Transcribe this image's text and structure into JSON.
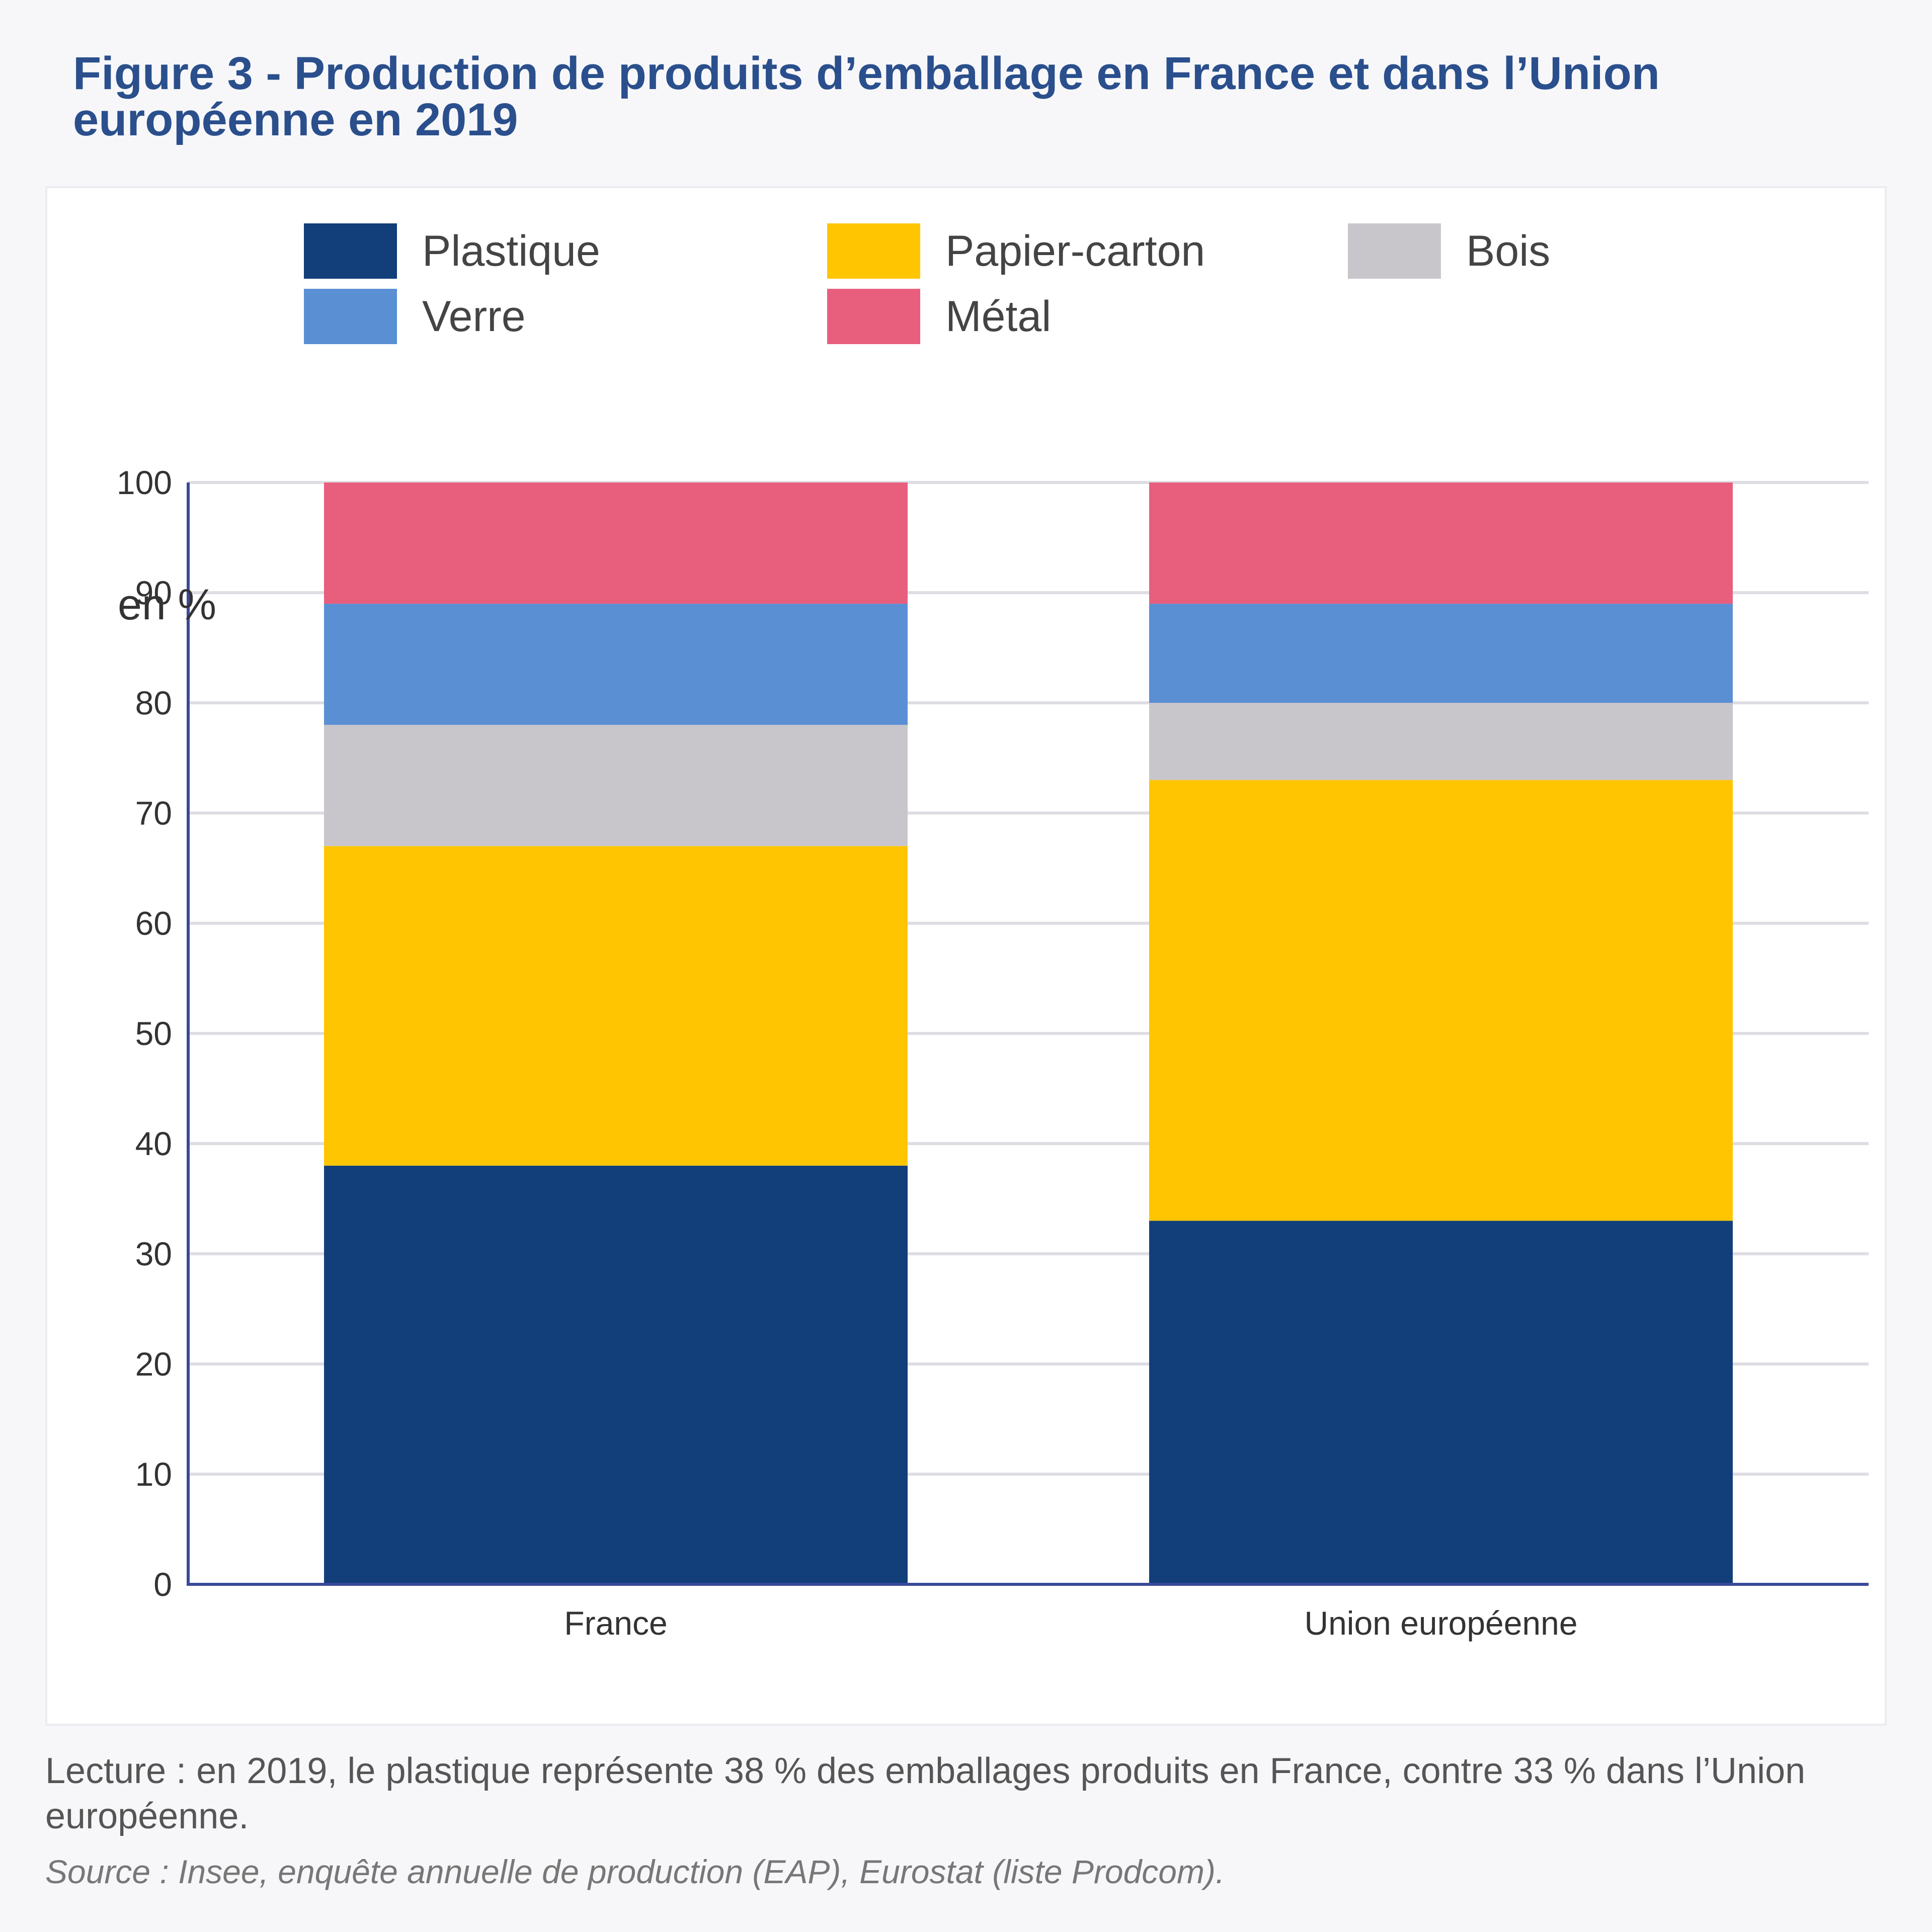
{
  "figure": {
    "title": "Figure 3 - Production de produits d’emballage en France et dans l’Union européenne en 2019",
    "note": "Lecture : en 2019, le plastique représente 38 % des emballages produits en France, contre 33 % dans l’Union européenne.",
    "source": "Source : Insee, enquête annuelle de production (EAP), Eurostat (liste Prodcom)."
  },
  "chart_data": {
    "type": "bar",
    "stacked": true,
    "title": "Figure 3 - Production de produits d’emballage en France et dans l’Union européenne en 2019",
    "ylabel": "en %",
    "xlabel": "",
    "categories": [
      "France",
      "Union européenne"
    ],
    "ylim": [
      0,
      100
    ],
    "yticks": [
      0,
      10,
      20,
      30,
      40,
      50,
      60,
      70,
      80,
      90,
      100
    ],
    "grid": true,
    "legend_position": "top",
    "series": [
      {
        "name": "Plastique",
        "color": "#123f7a",
        "values": [
          38,
          33
        ]
      },
      {
        "name": "Papier-carton",
        "color": "#fec500",
        "values": [
          29,
          40
        ]
      },
      {
        "name": "Bois",
        "color": "#c8c6cb",
        "values": [
          11,
          7
        ]
      },
      {
        "name": "Verre",
        "color": "#5b8fd4",
        "values": [
          11,
          9
        ]
      },
      {
        "name": "Métal",
        "color": "#e85e7d",
        "values": [
          11,
          11
        ]
      }
    ]
  }
}
